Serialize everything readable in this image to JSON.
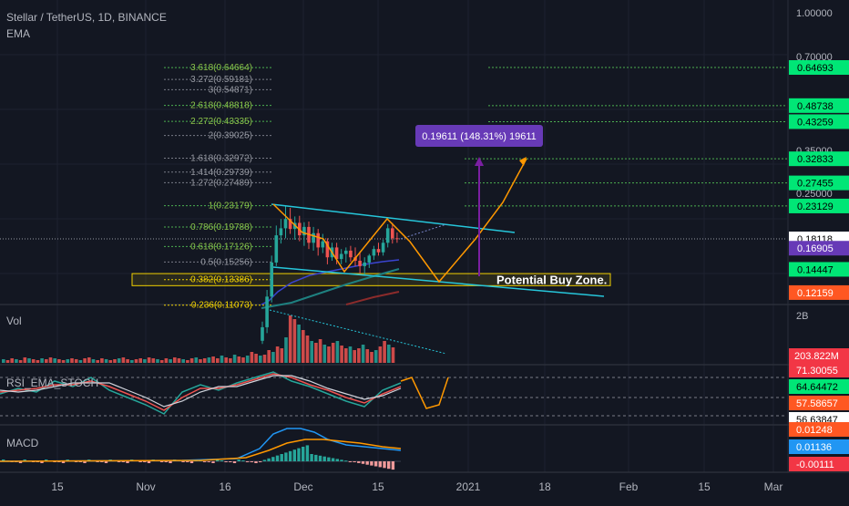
{
  "header": {
    "title": "Stellar / TetherUS, 1D, BINANCE",
    "indicator": "EMA"
  },
  "colors": {
    "background": "#131722",
    "grid": "#1e2230",
    "text": "#b2b5be",
    "up": "#26a69a",
    "down": "#ef5350",
    "green": "#00e676",
    "fib_green": "#4caf50",
    "fib_gray": "#787b86",
    "yellow": "#f0d000",
    "channel": "#26c6da",
    "orange": "#ff9800",
    "purple": "#7b1fa2",
    "measure": "#673ab7",
    "ema_blue": "#3a44d0",
    "ema_teal": "#1e8080",
    "ema_brown": "#8b2b2b"
  },
  "price_axis": {
    "scale": "log",
    "ticks": [
      "1.00000",
      "0.70000",
      "0.35000",
      "0.25000"
    ],
    "badges": [
      {
        "value": "0.64693",
        "color": "green"
      },
      {
        "value": "0.48738",
        "color": "green"
      },
      {
        "value": "0.43259",
        "color": "green"
      },
      {
        "value": "0.32833",
        "color": "green"
      },
      {
        "value": "0.27455",
        "color": "green"
      },
      {
        "value": "0.23129",
        "color": "green"
      },
      {
        "value": "0.18118",
        "color": "white"
      },
      {
        "value": "0.16905",
        "color": "purple"
      },
      {
        "value": "0.14447",
        "color": "green"
      },
      {
        "value": "0.12159",
        "color": "orange"
      }
    ]
  },
  "fib_levels": [
    {
      "label": "3.618(0.64664)",
      "value": 0.64664,
      "group": "green"
    },
    {
      "label": "3.272(0.59181)",
      "value": 0.59181,
      "group": "gray"
    },
    {
      "label": "3(0.54871)",
      "value": 0.54871,
      "group": "gray"
    },
    {
      "label": "2.618(0.48818)",
      "value": 0.48818,
      "group": "green"
    },
    {
      "label": "2.272(0.43335)",
      "value": 0.43335,
      "group": "green"
    },
    {
      "label": "2(0.39025)",
      "value": 0.39025,
      "group": "gray"
    },
    {
      "label": "1.618(0.32972)",
      "value": 0.32972,
      "group": "gray"
    },
    {
      "label": "1.414(0.29739)",
      "value": 0.29739,
      "group": "gray"
    },
    {
      "label": "1.272(0.27489)",
      "value": 0.27489,
      "group": "gray"
    },
    {
      "label": "1(0.23179)",
      "value": 0.23179,
      "group": "green"
    },
    {
      "label": "0.786(0.19788)",
      "value": 0.19788,
      "group": "green"
    },
    {
      "label": "0.618(0.17126)",
      "value": 0.17126,
      "group": "green"
    },
    {
      "label": "0.5(0.15256)",
      "value": 0.15256,
      "group": "gray"
    },
    {
      "label": "0.382(0.13386)",
      "value": 0.13386,
      "group": "yellow"
    },
    {
      "label": "0.236(0.11073)",
      "value": 0.11073,
      "group": "yellow"
    }
  ],
  "target_lines": [
    0.64693,
    0.48738,
    0.43259,
    0.32833,
    0.27455,
    0.23129
  ],
  "measure_label": "0.19611 (148.31%) 19611",
  "buy_zone": {
    "label": "Potential Buy Zone.",
    "low": 0.128,
    "high": 0.14
  },
  "current_price": 0.18118,
  "volume_pane": {
    "label": "Vol",
    "axis_top": "2B",
    "badge": "203.822M"
  },
  "rsi_pane": {
    "label": "RSI_EMA_STOCH",
    "badges": [
      {
        "value": "71.30055",
        "color": "red"
      },
      {
        "value": "64.64472",
        "color": "green"
      },
      {
        "value": "57.58657",
        "color": "orange"
      },
      {
        "value": "56.63847",
        "color": "white"
      }
    ]
  },
  "macd_pane": {
    "label": "MACD",
    "badges": [
      {
        "value": "0.01248",
        "color": "orange"
      },
      {
        "value": "0.01136",
        "color": "blue"
      },
      {
        "value": "-0.00111",
        "color": "red"
      }
    ]
  },
  "time_axis": [
    "15",
    "Nov",
    "16",
    "Dec",
    "15",
    "2021",
    "18",
    "Feb",
    "15",
    "Mar"
  ],
  "chart_data": {
    "type": "candlestick",
    "title": "Stellar / TetherUS, 1D, BINANCE",
    "x_range": [
      "2020-10-09",
      "2021-03-03"
    ],
    "y_scale": "log",
    "ohlc": [
      [
        0.085,
        0.098,
        0.083,
        0.094
      ],
      [
        0.094,
        0.124,
        0.09,
        0.118
      ],
      [
        0.118,
        0.16,
        0.113,
        0.152
      ],
      [
        0.152,
        0.2,
        0.148,
        0.186
      ],
      [
        0.186,
        0.21,
        0.175,
        0.196
      ],
      [
        0.196,
        0.232,
        0.182,
        0.21
      ],
      [
        0.21,
        0.228,
        0.188,
        0.195
      ],
      [
        0.195,
        0.214,
        0.18,
        0.204
      ],
      [
        0.204,
        0.215,
        0.178,
        0.186
      ],
      [
        0.186,
        0.205,
        0.172,
        0.198
      ],
      [
        0.198,
        0.206,
        0.168,
        0.176
      ],
      [
        0.176,
        0.198,
        0.166,
        0.189
      ],
      [
        0.189,
        0.195,
        0.16,
        0.17
      ],
      [
        0.17,
        0.188,
        0.163,
        0.178
      ],
      [
        0.178,
        0.182,
        0.15,
        0.158
      ],
      [
        0.158,
        0.176,
        0.154,
        0.17
      ],
      [
        0.17,
        0.176,
        0.15,
        0.156
      ],
      [
        0.156,
        0.168,
        0.15,
        0.162
      ],
      [
        0.162,
        0.17,
        0.152,
        0.166
      ],
      [
        0.166,
        0.172,
        0.153,
        0.158
      ],
      [
        0.158,
        0.17,
        0.148,
        0.154
      ],
      [
        0.154,
        0.165,
        0.14,
        0.148
      ],
      [
        0.148,
        0.158,
        0.138,
        0.152
      ],
      [
        0.152,
        0.162,
        0.146,
        0.16
      ],
      [
        0.16,
        0.172,
        0.155,
        0.168
      ],
      [
        0.168,
        0.176,
        0.16,
        0.164
      ],
      [
        0.164,
        0.18,
        0.16,
        0.176
      ],
      [
        0.176,
        0.202,
        0.17,
        0.196
      ],
      [
        0.196,
        0.204,
        0.175,
        0.182
      ],
      [
        0.182,
        0.19,
        0.176,
        0.181
      ]
    ]
  }
}
